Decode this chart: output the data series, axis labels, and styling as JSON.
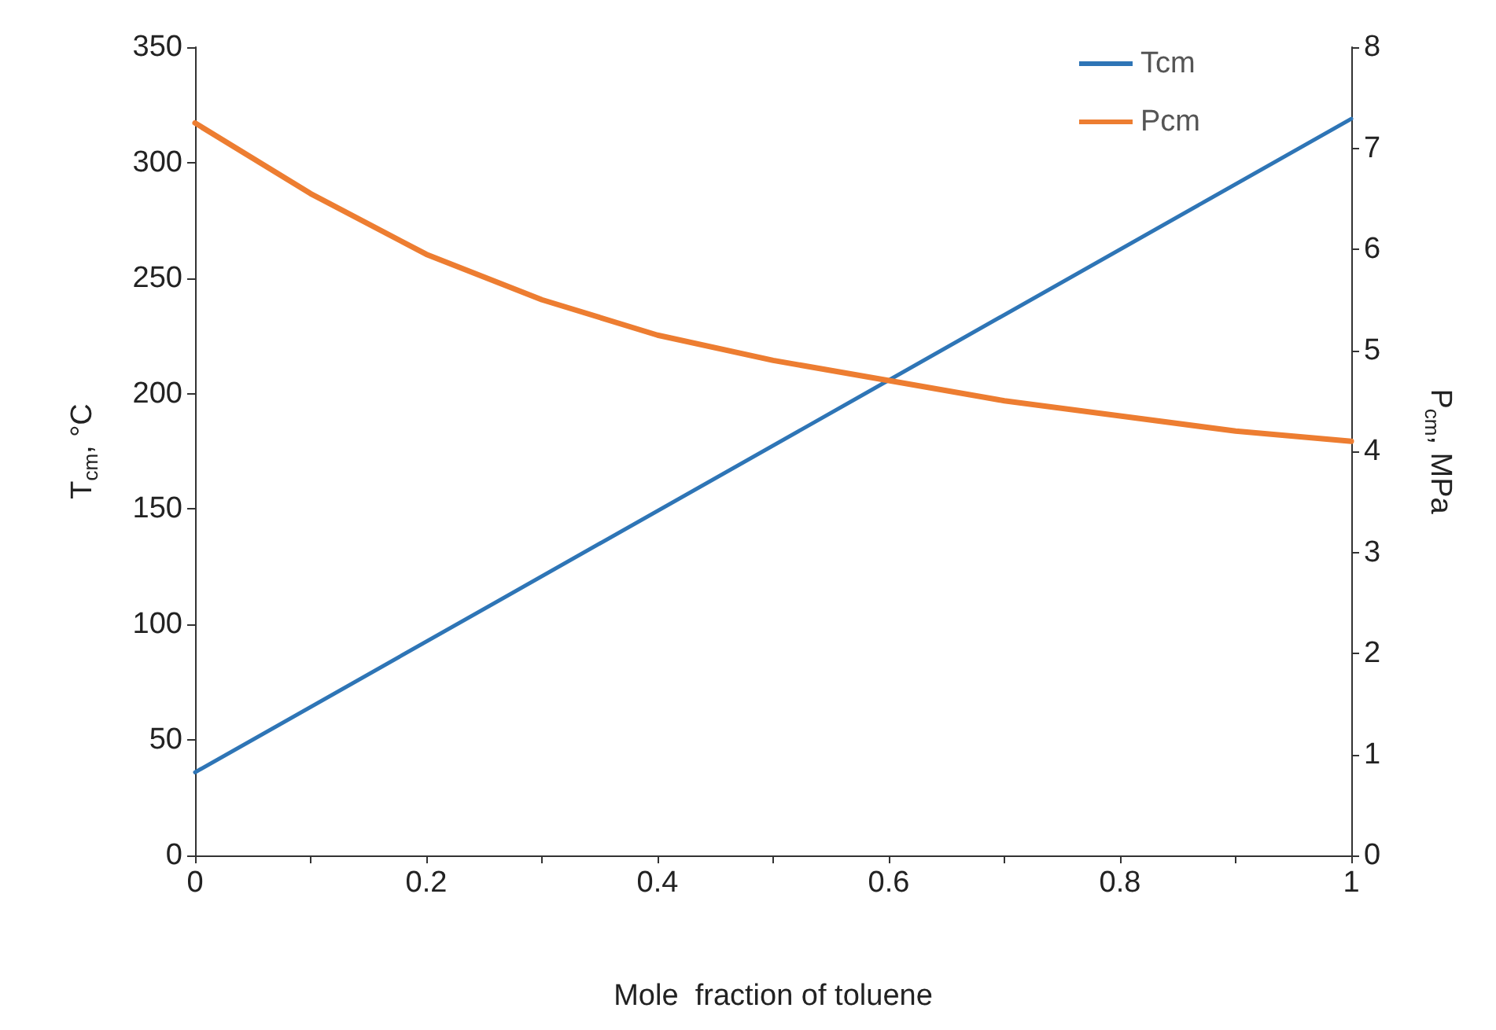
{
  "chart_data": {
    "type": "line",
    "xlabel": "Mole  fraction of toluene",
    "ylabel": "T$_{cm}$, °C",
    "y2label": "P$_{cm}$, MPa",
    "xlim": [
      0,
      1
    ],
    "xticks": [
      0,
      {
        "value": 0.1,
        "label": null
      },
      0.2,
      {
        "value": 0.3,
        "label": null
      },
      0.4,
      {
        "value": 0.5,
        "label": null
      },
      0.6,
      {
        "value": 0.7,
        "label": null
      },
      0.8,
      {
        "value": 0.9,
        "label": null
      },
      1
    ],
    "ylim": [
      0,
      350
    ],
    "yticks": [
      0,
      50,
      100,
      150,
      200,
      250,
      300,
      350
    ],
    "y2lim": [
      0,
      8
    ],
    "y2ticks": [
      0,
      1,
      2,
      3,
      4,
      5,
      6,
      7,
      8
    ],
    "series": [
      {
        "name": "Tcm",
        "color": "#2e75b6",
        "x": [
          0,
          1
        ],
        "values": [
          36,
          319
        ]
      },
      {
        "name": "Pcm",
        "color": "#ed7d31",
        "axis": "y2",
        "x": [
          0,
          0.1,
          0.2,
          0.3,
          0.4,
          0.5,
          0.6,
          0.7,
          0.8,
          0.9,
          1
        ],
        "values": [
          7.25,
          6.55,
          5.95,
          5.5,
          5.15,
          4.9,
          4.7,
          4.5,
          4.35,
          4.2,
          4.1
        ]
      }
    ],
    "legend": "top right",
    "grid": false,
    "marker": "none",
    "line_style": "solid"
  }
}
